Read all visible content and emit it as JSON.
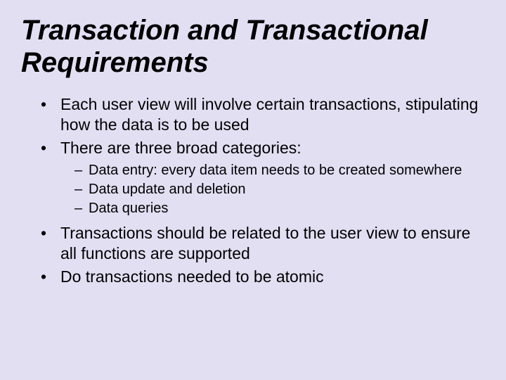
{
  "background_color": "#e2dff3",
  "text_color": "#000000",
  "title": {
    "text": "Transaction and Transactional Requirements",
    "fontsize": 40,
    "italic": true
  },
  "bullets": {
    "level1_fontsize": 23,
    "level2_fontsize": 20,
    "items": [
      {
        "text": "Each user view will involve certain transactions, stipulating how the data is to be used"
      },
      {
        "text": "There are three broad categories:",
        "sub": [
          "Data entry: every data item needs to be created somewhere",
          "Data update and deletion",
          "Data queries"
        ]
      },
      {
        "text": "Transactions should be related to the user view to ensure all functions are supported"
      },
      {
        "text": "Do transactions needed to be atomic"
      }
    ]
  }
}
